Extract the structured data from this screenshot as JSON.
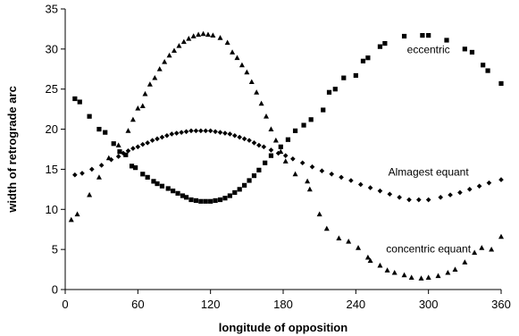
{
  "chart_data": {
    "type": "scatter",
    "title": "",
    "xlabel": "longitude of opposition",
    "ylabel": "width of retrograde arc",
    "xlim": [
      0,
      360
    ],
    "ylim": [
      0,
      35
    ],
    "xticks": [
      0,
      60,
      120,
      180,
      240,
      300,
      360
    ],
    "yticks": [
      0,
      5,
      10,
      15,
      20,
      25,
      30,
      35
    ],
    "grid": false,
    "legend": "none",
    "annotations": [
      {
        "text": "eccentric",
        "series": "eccentric",
        "x": 300,
        "y": 29.5
      },
      {
        "text": "Almagest equant",
        "series": "Almagest equant",
        "x": 300,
        "y": 14.2
      },
      {
        "text": "concentric equant",
        "series": "concentric equant",
        "x": 300,
        "y": 4.6
      }
    ],
    "series": [
      {
        "name": "eccentric",
        "marker": "square",
        "color": "#000000",
        "points": [
          [
            8,
            23.8
          ],
          [
            12,
            23.4
          ],
          [
            20,
            21.6
          ],
          [
            28,
            20.0
          ],
          [
            33,
            19.6
          ],
          [
            40,
            18.2
          ],
          [
            45,
            17.2
          ],
          [
            50,
            16.8
          ],
          [
            55,
            15.4
          ],
          [
            58,
            15.2
          ],
          [
            64,
            14.4
          ],
          [
            68,
            14.0
          ],
          [
            73,
            13.5
          ],
          [
            76,
            13.2
          ],
          [
            80,
            12.9
          ],
          [
            85,
            12.6
          ],
          [
            89,
            12.3
          ],
          [
            93,
            12.0
          ],
          [
            97,
            11.7
          ],
          [
            100,
            11.5
          ],
          [
            104,
            11.2
          ],
          [
            108,
            11.1
          ],
          [
            112,
            11.0
          ],
          [
            116,
            11.0
          ],
          [
            120,
            11.0
          ],
          [
            124,
            11.1
          ],
          [
            128,
            11.2
          ],
          [
            132,
            11.4
          ],
          [
            136,
            11.7
          ],
          [
            140,
            12.1
          ],
          [
            144,
            12.5
          ],
          [
            148,
            13.0
          ],
          [
            152,
            13.6
          ],
          [
            156,
            14.2
          ],
          [
            160,
            14.9
          ],
          [
            165,
            15.8
          ],
          [
            170,
            16.7
          ],
          [
            178,
            17.8
          ],
          [
            184,
            18.7
          ],
          [
            190,
            19.8
          ],
          [
            197,
            20.5
          ],
          [
            203,
            21.2
          ],
          [
            213,
            22.4
          ],
          [
            218,
            24.6
          ],
          [
            223,
            25.0
          ],
          [
            230,
            26.4
          ],
          [
            240,
            26.7
          ],
          [
            246,
            28.5
          ],
          [
            250,
            28.9
          ],
          [
            260,
            30.3
          ],
          [
            264,
            30.7
          ],
          [
            280,
            31.6
          ],
          [
            295,
            31.7
          ],
          [
            300,
            31.7
          ],
          [
            315,
            31.1
          ],
          [
            330,
            30.0
          ],
          [
            336,
            29.6
          ],
          [
            345,
            28.0
          ],
          [
            349,
            27.3
          ],
          [
            360,
            25.7
          ]
        ]
      },
      {
        "name": "Almagest equant",
        "marker": "diamond",
        "color": "#000000",
        "points": [
          [
            8,
            14.3
          ],
          [
            14,
            14.5
          ],
          [
            22,
            15.0
          ],
          [
            30,
            15.5
          ],
          [
            38,
            16.2
          ],
          [
            44,
            16.6
          ],
          [
            48,
            17.0
          ],
          [
            52,
            17.3
          ],
          [
            56,
            17.6
          ],
          [
            60,
            17.8
          ],
          [
            64,
            18.1
          ],
          [
            68,
            18.3
          ],
          [
            72,
            18.6
          ],
          [
            76,
            18.8
          ],
          [
            80,
            19.0
          ],
          [
            84,
            19.2
          ],
          [
            88,
            19.4
          ],
          [
            92,
            19.5
          ],
          [
            96,
            19.6
          ],
          [
            100,
            19.7
          ],
          [
            104,
            19.8
          ],
          [
            108,
            19.8
          ],
          [
            112,
            19.8
          ],
          [
            116,
            19.8
          ],
          [
            120,
            19.8
          ],
          [
            124,
            19.7
          ],
          [
            128,
            19.6
          ],
          [
            132,
            19.5
          ],
          [
            136,
            19.4
          ],
          [
            140,
            19.2
          ],
          [
            144,
            19.0
          ],
          [
            148,
            18.8
          ],
          [
            152,
            18.6
          ],
          [
            156,
            18.3
          ],
          [
            160,
            18.0
          ],
          [
            164,
            17.8
          ],
          [
            170,
            17.4
          ],
          [
            176,
            17.0
          ],
          [
            182,
            16.7
          ],
          [
            188,
            16.3
          ],
          [
            196,
            15.8
          ],
          [
            204,
            15.3
          ],
          [
            212,
            14.8
          ],
          [
            220,
            14.4
          ],
          [
            228,
            14.0
          ],
          [
            236,
            13.6
          ],
          [
            244,
            13.1
          ],
          [
            252,
            12.7
          ],
          [
            260,
            12.3
          ],
          [
            268,
            11.9
          ],
          [
            276,
            11.5
          ],
          [
            284,
            11.2
          ],
          [
            292,
            11.2
          ],
          [
            300,
            11.2
          ],
          [
            310,
            11.5
          ],
          [
            318,
            11.8
          ],
          [
            326,
            12.1
          ],
          [
            334,
            12.5
          ],
          [
            342,
            12.9
          ],
          [
            350,
            13.3
          ],
          [
            360,
            13.7
          ]
        ]
      },
      {
        "name": "concentric equant",
        "marker": "triangle",
        "color": "#000000",
        "points": [
          [
            5,
            8.7
          ],
          [
            10,
            9.4
          ],
          [
            20,
            11.8
          ],
          [
            28,
            14.0
          ],
          [
            36,
            16.4
          ],
          [
            44,
            18.0
          ],
          [
            52,
            19.8
          ],
          [
            56,
            21.2
          ],
          [
            60,
            22.6
          ],
          [
            64,
            22.9
          ],
          [
            66,
            24.4
          ],
          [
            70,
            25.6
          ],
          [
            74,
            26.4
          ],
          [
            78,
            27.5
          ],
          [
            82,
            28.4
          ],
          [
            86,
            29.2
          ],
          [
            90,
            29.8
          ],
          [
            94,
            30.4
          ],
          [
            98,
            30.9
          ],
          [
            102,
            31.3
          ],
          [
            106,
            31.6
          ],
          [
            110,
            31.8
          ],
          [
            114,
            31.9
          ],
          [
            118,
            31.8
          ],
          [
            122,
            31.7
          ],
          [
            128,
            31.4
          ],
          [
            134,
            30.8
          ],
          [
            138,
            29.6
          ],
          [
            142,
            28.9
          ],
          [
            146,
            28.0
          ],
          [
            150,
            27.1
          ],
          [
            154,
            25.9
          ],
          [
            158,
            24.6
          ],
          [
            162,
            23.2
          ],
          [
            166,
            21.6
          ],
          [
            170,
            20.0
          ],
          [
            174,
            18.6
          ],
          [
            178,
            17.2
          ],
          [
            182,
            16.0
          ],
          [
            190,
            14.4
          ],
          [
            200,
            13.5
          ],
          [
            202,
            12.5
          ],
          [
            210,
            9.4
          ],
          [
            216,
            7.6
          ],
          [
            226,
            6.4
          ],
          [
            234,
            6.0
          ],
          [
            242,
            5.2
          ],
          [
            250,
            4.0
          ],
          [
            252,
            3.6
          ],
          [
            260,
            3.0
          ],
          [
            266,
            2.4
          ],
          [
            272,
            2.1
          ],
          [
            280,
            1.8
          ],
          [
            286,
            1.5
          ],
          [
            294,
            1.4
          ],
          [
            300,
            1.5
          ],
          [
            308,
            1.7
          ],
          [
            316,
            2.1
          ],
          [
            322,
            2.5
          ],
          [
            330,
            3.4
          ],
          [
            338,
            4.6
          ],
          [
            344,
            5.2
          ],
          [
            352,
            5.0
          ],
          [
            360,
            6.6
          ]
        ]
      }
    ]
  }
}
